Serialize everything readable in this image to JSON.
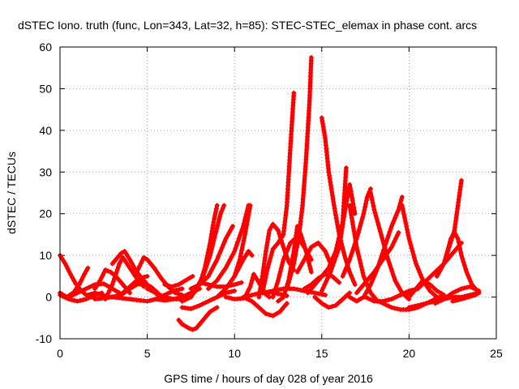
{
  "chart_data": {
    "type": "line",
    "title": "dSTEC Iono. truth (func, Lon=343, Lat=32, h=85): STEC-STEC_elemax in phase cont. arcs",
    "xlabel": "GPS time / hours of day 028 of year 2016",
    "ylabel": "dSTEC  / TECUs",
    "xlim": [
      0,
      25
    ],
    "ylim": [
      -10,
      60
    ],
    "xticks": [
      "0",
      "5",
      "10",
      "15",
      "20",
      "25"
    ],
    "yticks": [
      "-10",
      "0",
      "10",
      "20",
      "30",
      "40",
      "50",
      "60"
    ],
    "grid": true,
    "legend": "none",
    "marker": "plus",
    "color": "#ff0000",
    "series": [
      {
        "x": [
          0.0,
          0.3,
          0.6,
          0.9,
          1.2,
          1.5,
          1.8,
          2.0
        ],
        "y": [
          10.0,
          8.0,
          5.5,
          3.2,
          1.6,
          0.5,
          0.0,
          -0.2
        ]
      },
      {
        "x": [
          0.0,
          0.5,
          1.0,
          1.5,
          2.0,
          2.4
        ],
        "y": [
          0.5,
          -0.5,
          -1.0,
          -0.5,
          0.5,
          1.0
        ]
      },
      {
        "x": [
          0.0,
          0.4,
          0.8,
          1.1,
          1.4,
          1.6
        ],
        "y": [
          1.0,
          0.0,
          1.2,
          3.0,
          5.5,
          7.0
        ]
      },
      {
        "x": [
          0.5,
          1.0,
          1.5,
          2.0,
          2.5,
          3.0,
          3.4
        ],
        "y": [
          0.0,
          1.0,
          2.0,
          3.0,
          3.2,
          2.0,
          1.0
        ]
      },
      {
        "x": [
          1.6,
          2.0,
          2.4,
          2.8,
          3.2,
          3.6,
          4.0,
          4.4,
          4.8,
          5.2,
          5.6
        ],
        "y": [
          0.5,
          1.0,
          0.5,
          0.0,
          0.2,
          0.8,
          2.0,
          3.0,
          3.3,
          2.5,
          1.0
        ]
      },
      {
        "x": [
          2.0,
          2.3,
          2.6,
          2.9,
          3.2,
          3.6,
          4.0
        ],
        "y": [
          2.0,
          4.0,
          6.5,
          6.0,
          5.0,
          3.0,
          1.0
        ]
      },
      {
        "x": [
          2.6,
          3.0,
          3.4,
          3.6,
          4.0,
          4.4,
          4.8
        ],
        "y": [
          -0.5,
          3.0,
          8.0,
          9.5,
          7.0,
          4.5,
          2.5
        ]
      },
      {
        "x": [
          3.0,
          3.5,
          3.7,
          4.0,
          4.4,
          4.8,
          5.2,
          5.6
        ],
        "y": [
          8.0,
          10.5,
          11.0,
          9.0,
          6.0,
          4.0,
          2.0,
          0.5
        ]
      },
      {
        "x": [
          3.2,
          3.6,
          4.0,
          4.4,
          4.8,
          5.0
        ],
        "y": [
          0.0,
          1.0,
          2.5,
          4.0,
          4.8,
          5.0
        ]
      },
      {
        "x": [
          4.4,
          4.8,
          5.0,
          5.4,
          5.8,
          6.2,
          6.6,
          7.0
        ],
        "y": [
          6.0,
          9.5,
          9.0,
          7.0,
          4.5,
          2.5,
          1.0,
          0.5
        ]
      },
      {
        "x": [
          2.0,
          3.0,
          4.0,
          5.0,
          5.5,
          6.0,
          6.5,
          7.0
        ],
        "y": [
          -0.5,
          0.0,
          -0.5,
          -1.0,
          -0.5,
          0.5,
          1.5,
          2.0
        ]
      },
      {
        "x": [
          5.0,
          5.5,
          6.0,
          6.5,
          7.0,
          7.4,
          7.8
        ],
        "y": [
          2.0,
          1.0,
          0.0,
          -0.5,
          -0.5,
          0.5,
          2.0
        ]
      },
      {
        "x": [
          6.0,
          6.4,
          6.8,
          7.2,
          7.6
        ],
        "y": [
          3.0,
          2.5,
          3.0,
          4.0,
          5.0
        ]
      },
      {
        "x": [
          5.5,
          6.0,
          6.5,
          7.0,
          7.5,
          8.0
        ],
        "y": [
          -0.5,
          -0.8,
          -0.5,
          0.0,
          1.0,
          2.0
        ]
      },
      {
        "x": [
          6.8,
          7.0,
          7.4,
          7.6,
          7.8,
          8.0,
          8.3,
          8.6,
          9.0
        ],
        "y": [
          -5.5,
          -6.5,
          -7.5,
          -7.8,
          -7.5,
          -6.5,
          -5.0,
          -3.5,
          -2.5
        ]
      },
      {
        "x": [
          7.0,
          7.5,
          8.0,
          8.5,
          9.0,
          9.5,
          10.0
        ],
        "y": [
          -2.5,
          -2.8,
          -2.0,
          -1.0,
          0.0,
          1.0,
          1.5
        ]
      },
      {
        "x": [
          7.0,
          7.5,
          8.0,
          8.3,
          8.6,
          8.8,
          9.0
        ],
        "y": [
          -1.0,
          0.0,
          3.0,
          7.0,
          13.0,
          18.0,
          22.0
        ]
      },
      {
        "x": [
          7.8,
          8.2,
          8.6,
          8.9,
          9.2,
          9.4
        ],
        "y": [
          2.0,
          5.0,
          10.0,
          15.0,
          20.0,
          22.0
        ]
      },
      {
        "x": [
          7.5,
          8.0,
          8.5,
          9.0,
          9.5,
          9.9
        ],
        "y": [
          2.0,
          3.0,
          5.0,
          9.0,
          14.0,
          17.0
        ]
      },
      {
        "x": [
          8.0,
          8.5,
          9.0,
          9.5,
          10.0,
          10.4
        ],
        "y": [
          3.5,
          3.0,
          2.5,
          2.5,
          3.0,
          3.5
        ]
      },
      {
        "x": [
          8.5,
          9.0,
          9.5,
          10.0,
          10.5,
          10.8
        ],
        "y": [
          2.0,
          4.0,
          7.0,
          11.0,
          17.0,
          22.0
        ]
      },
      {
        "x": [
          9.0,
          9.5,
          10.0,
          10.3,
          10.6,
          10.9
        ],
        "y": [
          0.0,
          2.0,
          5.0,
          9.0,
          15.0,
          22.0
        ]
      },
      {
        "x": [
          10.0,
          10.5,
          10.8,
          11.0
        ],
        "y": [
          5.0,
          9.0,
          11.0,
          10.0
        ]
      },
      {
        "x": [
          10.6,
          10.9,
          11.1,
          11.4,
          11.7,
          12.0
        ],
        "y": [
          0.0,
          2.5,
          5.5,
          3.5,
          1.0,
          0.0
        ]
      },
      {
        "x": [
          9.5,
          10.0,
          10.5,
          11.0,
          11.5,
          12.0,
          12.5,
          13.0
        ],
        "y": [
          0.0,
          -0.5,
          -0.3,
          0.5,
          1.0,
          1.2,
          0.8,
          0.3
        ]
      },
      {
        "x": [
          10.5,
          11.0,
          11.4,
          11.8,
          12.2,
          12.6,
          13.0
        ],
        "y": [
          0.0,
          -1.0,
          -2.5,
          -4.0,
          -4.5,
          -3.5,
          -1.5
        ]
      },
      {
        "x": [
          11.4,
          11.6,
          11.8,
          12.0,
          12.2,
          12.5,
          12.8,
          13.1,
          13.4
        ],
        "y": [
          0.0,
          5.0,
          11.0,
          16.0,
          17.5,
          16.0,
          12.0,
          8.5,
          6.5
        ]
      },
      {
        "x": [
          11.6,
          11.9,
          12.2,
          12.5,
          12.8,
          13.0,
          13.2,
          13.4
        ],
        "y": [
          1.0,
          7.0,
          11.5,
          13.0,
          15.0,
          22.0,
          36.0,
          49.0
        ]
      },
      {
        "x": [
          12.2,
          12.5,
          12.8,
          13.2,
          13.6,
          14.0,
          14.4
        ],
        "y": [
          0.0,
          4.0,
          9.0,
          13.0,
          14.5,
          12.0,
          9.0
        ]
      },
      {
        "x": [
          11.6,
          12.2,
          12.8,
          13.4,
          14.0,
          14.6,
          15.2
        ],
        "y": [
          1.0,
          1.5,
          2.0,
          2.0,
          1.5,
          1.0,
          0.5
        ]
      },
      {
        "x": [
          12.5,
          12.8,
          13.1,
          13.4,
          13.6,
          13.8,
          14.1,
          14.4
        ],
        "y": [
          -1.0,
          0.0,
          4.0,
          11.0,
          17.0,
          15.0,
          11.0,
          6.0
        ]
      },
      {
        "x": [
          13.0,
          13.4,
          13.7,
          13.9,
          14.1,
          14.3,
          14.4
        ],
        "y": [
          2.0,
          8.0,
          15.0,
          22.0,
          33.0,
          47.0,
          57.5
        ]
      },
      {
        "x": [
          13.6,
          14.0,
          14.4,
          14.8,
          15.2,
          15.5
        ],
        "y": [
          6.0,
          9.0,
          12.0,
          13.0,
          11.0,
          8.0
        ]
      },
      {
        "x": [
          14.0,
          14.4,
          14.8,
          15.2,
          15.6,
          16.0
        ],
        "y": [
          2.0,
          3.0,
          4.5,
          5.5,
          5.0,
          3.5
        ]
      },
      {
        "x": [
          15.0,
          15.2,
          15.4,
          15.7,
          16.0,
          16.3,
          16.6,
          16.9
        ],
        "y": [
          43.0,
          38.0,
          30.0,
          22.0,
          15.0,
          10.0,
          6.0,
          3.0
        ]
      },
      {
        "x": [
          14.6,
          15.0,
          15.4,
          15.8,
          16.2,
          16.6
        ],
        "y": [
          0.0,
          -1.5,
          -2.5,
          -2.0,
          -0.5,
          1.0
        ]
      },
      {
        "x": [
          14.2,
          14.6,
          15.0,
          15.4,
          15.8,
          16.2,
          16.4
        ],
        "y": [
          1.0,
          3.0,
          5.0,
          7.0,
          11.0,
          18.0,
          31.0
        ]
      },
      {
        "x": [
          15.0,
          15.5,
          16.0,
          16.3,
          16.6,
          16.9
        ],
        "y": [
          1.5,
          6.0,
          12.0,
          20.0,
          27.0,
          20.0
        ]
      },
      {
        "x": [
          16.6,
          17.0,
          17.4,
          17.8,
          18.2
        ],
        "y": [
          22.0,
          12.0,
          5.0,
          1.0,
          -1.0
        ]
      },
      {
        "x": [
          16.2,
          16.6,
          17.0,
          17.4,
          17.6,
          17.8
        ],
        "y": [
          5.0,
          9.0,
          14.0,
          20.0,
          24.0,
          26.0
        ]
      },
      {
        "x": [
          16.6,
          17.0,
          17.4,
          17.8,
          18.2,
          18.6,
          19.0,
          19.4,
          19.6
        ],
        "y": [
          0.0,
          -1.0,
          0.0,
          3.0,
          7.0,
          12.0,
          17.0,
          21.0,
          24.0
        ]
      },
      {
        "x": [
          17.8,
          18.0,
          18.4,
          18.8,
          19.2,
          19.6,
          20.0
        ],
        "y": [
          25.0,
          21.0,
          15.0,
          9.0,
          4.0,
          1.0,
          -0.5
        ]
      },
      {
        "x": [
          17.0,
          17.5,
          18.0,
          18.5,
          19.0,
          19.4
        ],
        "y": [
          1.0,
          3.5,
          6.0,
          9.0,
          12.0,
          15.5
        ]
      },
      {
        "x": [
          17.5,
          18.0,
          18.5,
          19.0,
          19.5,
          20.0,
          20.5
        ],
        "y": [
          0.0,
          -1.0,
          -1.0,
          -0.5,
          0.5,
          1.5,
          2.0
        ]
      },
      {
        "x": [
          18.0,
          18.5,
          19.0,
          19.5,
          20.0,
          20.5,
          21.0,
          21.5,
          22.0
        ],
        "y": [
          -0.5,
          -1.5,
          -2.5,
          -3.0,
          -3.0,
          -2.5,
          -1.5,
          -0.5,
          0.5
        ]
      },
      {
        "x": [
          19.6,
          20.0,
          20.4,
          20.8,
          21.2,
          21.6,
          22.0
        ],
        "y": [
          22.0,
          14.0,
          8.0,
          4.0,
          1.5,
          0.0,
          -0.5
        ]
      },
      {
        "x": [
          19.5,
          20.0,
          20.5,
          21.0,
          21.5,
          22.0,
          22.5,
          23.0
        ],
        "y": [
          0.5,
          1.0,
          2.0,
          4.0,
          6.0,
          8.0,
          10.5,
          13.0
        ]
      },
      {
        "x": [
          20.0,
          20.4,
          20.8,
          21.2,
          21.6,
          22.0
        ],
        "y": [
          0.0,
          2.0,
          4.0,
          3.0,
          1.5,
          0.5
        ]
      },
      {
        "x": [
          20.0,
          20.5,
          21.0,
          21.5,
          22.0,
          22.5,
          23.0,
          23.5,
          24.0
        ],
        "y": [
          -2.5,
          -2.0,
          -1.5,
          -1.0,
          -0.5,
          0.0,
          0.0,
          0.5,
          1.0
        ]
      },
      {
        "x": [
          21.6,
          22.0,
          22.3,
          22.6,
          22.8,
          23.0
        ],
        "y": [
          5.0,
          8.0,
          12.0,
          16.0,
          22.0,
          28.0
        ]
      },
      {
        "x": [
          22.0,
          22.4,
          22.6,
          22.8,
          23.0,
          23.3,
          23.6,
          24.0
        ],
        "y": [
          8.0,
          14.0,
          15.5,
          14.0,
          10.0,
          6.0,
          3.0,
          1.0
        ]
      },
      {
        "x": [
          22.5,
          23.0,
          23.4,
          23.8,
          24.0
        ],
        "y": [
          -1.0,
          -0.5,
          0.0,
          0.5,
          1.0
        ]
      },
      {
        "x": [
          21.5,
          22.0,
          22.5,
          23.0,
          23.5,
          24.0
        ],
        "y": [
          -1.5,
          -0.5,
          1.0,
          2.0,
          2.5,
          1.5
        ]
      }
    ]
  }
}
